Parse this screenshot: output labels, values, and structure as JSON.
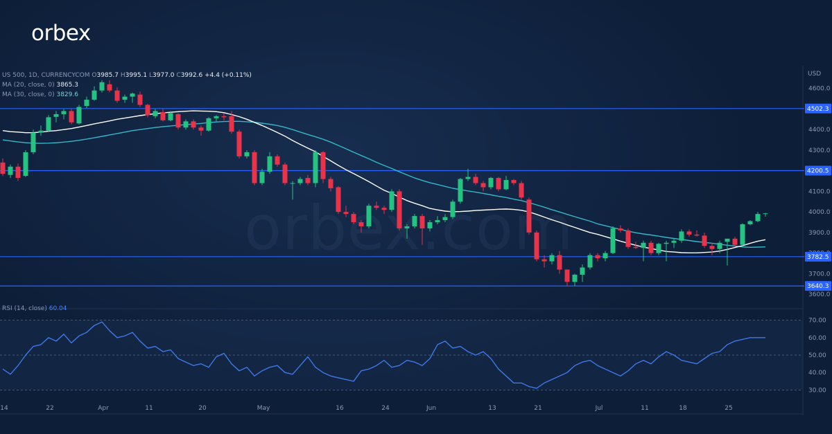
{
  "brand": {
    "logo": "orbex",
    "watermark": "orbex.com"
  },
  "colors": {
    "up": "#26c281",
    "down": "#e8334a",
    "level": "#2a63ff",
    "ma20": "#ffffff",
    "ma30": "#33b8c9",
    "rsi": "#3f78e8"
  },
  "chart_data": {
    "type": "candlestick",
    "symbol": "US 500, 1D, CURRENCYCOM",
    "ohlc_readout": {
      "o_label": "O",
      "o": "3985.7",
      "h_label": "H",
      "h": "3995.1",
      "l_label": "L",
      "l": "3977.0",
      "c_label": "C",
      "c": "3992.6",
      "change": "+4.4 (+0.11%)"
    },
    "ma20": {
      "label": "MA (20, close, 0)",
      "value": "3865.3"
    },
    "ma30": {
      "label": "MA (30, close, 0)",
      "value": "3829.6"
    },
    "rsi": {
      "label": "RSI (14, close)",
      "value": "60.04"
    },
    "currency": "USD",
    "price_ylim": [
      3560,
      4700
    ],
    "price_ticks": [
      "3600.0",
      "3700.0",
      "3800.0",
      "3900.0",
      "4000.0",
      "4100.0",
      "4200.0",
      "4300.0",
      "4400.0",
      "4500.0",
      "4600.0"
    ],
    "levels": [
      {
        "value": 4502.3,
        "label": "4502.3"
      },
      {
        "value": 4200.5,
        "label": "4200.5"
      },
      {
        "value": 3782.5,
        "label": "3782.5"
      },
      {
        "value": 3640.3,
        "label": "3640.3"
      }
    ],
    "rsi_ylim": [
      25,
      75
    ],
    "rsi_ticks": [
      "30.00",
      "40.00",
      "50.00",
      "60.00",
      "70.00"
    ],
    "rsi_levels": [
      30,
      50,
      70
    ],
    "x_ticks": [
      {
        "label": "14",
        "index": 0
      },
      {
        "label": "22",
        "index": 6
      },
      {
        "label": "Apr",
        "index": 13
      },
      {
        "label": "11",
        "index": 19
      },
      {
        "label": "20",
        "index": 26
      },
      {
        "label": "May",
        "index": 34
      },
      {
        "label": "16",
        "index": 44
      },
      {
        "label": "24",
        "index": 50
      },
      {
        "label": "Jun",
        "index": 56
      },
      {
        "label": "13",
        "index": 64
      },
      {
        "label": "21",
        "index": 70
      },
      {
        "label": "Jul",
        "index": 78
      },
      {
        "label": "11",
        "index": 84
      },
      {
        "label": "18",
        "index": 89
      },
      {
        "label": "25",
        "index": 95
      }
    ],
    "candles": [
      [
        4240,
        4260,
        4175,
        4185
      ],
      [
        4180,
        4230,
        4165,
        4220
      ],
      [
        4220,
        4235,
        4150,
        4165
      ],
      [
        4175,
        4300,
        4170,
        4290
      ],
      [
        4290,
        4400,
        4280,
        4385
      ],
      [
        4385,
        4420,
        4370,
        4395
      ],
      [
        4395,
        4470,
        4390,
        4460
      ],
      [
        4462,
        4490,
        4435,
        4475
      ],
      [
        4475,
        4500,
        4450,
        4490
      ],
      [
        4490,
        4500,
        4425,
        4435
      ],
      [
        4430,
        4520,
        4425,
        4510
      ],
      [
        4515,
        4560,
        4505,
        4545
      ],
      [
        4545,
        4610,
        4540,
        4590
      ],
      [
        4590,
        4640,
        4580,
        4630
      ],
      [
        4620,
        4640,
        4580,
        4590
      ],
      [
        4590,
        4605,
        4530,
        4540
      ],
      [
        4545,
        4570,
        4530,
        4560
      ],
      [
        4560,
        4580,
        4530,
        4575
      ],
      [
        4570,
        4585,
        4510,
        4520
      ],
      [
        4520,
        4525,
        4460,
        4470
      ],
      [
        4465,
        4500,
        4455,
        4490
      ],
      [
        4485,
        4500,
        4440,
        4445
      ],
      [
        4445,
        4490,
        4440,
        4480
      ],
      [
        4475,
        4480,
        4400,
        4410
      ],
      [
        4410,
        4450,
        4400,
        4440
      ],
      [
        4440,
        4450,
        4400,
        4410
      ],
      [
        4410,
        4420,
        4370,
        4395
      ],
      [
        4395,
        4460,
        4390,
        4455
      ],
      [
        4455,
        4470,
        4440,
        4465
      ],
      [
        4465,
        4480,
        4445,
        4460
      ],
      [
        4465,
        4490,
        4380,
        4390
      ],
      [
        4390,
        4400,
        4260,
        4270
      ],
      [
        4270,
        4300,
        4260,
        4290
      ],
      [
        4290,
        4300,
        4130,
        4140
      ],
      [
        4140,
        4210,
        4130,
        4195
      ],
      [
        4195,
        4290,
        4185,
        4270
      ],
      [
        4270,
        4280,
        4220,
        4230
      ],
      [
        4230,
        4240,
        4130,
        4140
      ],
      [
        4140,
        4150,
        4060,
        4140
      ],
      [
        4140,
        4170,
        4130,
        4160
      ],
      [
        4165,
        4180,
        4130,
        4140
      ],
      [
        4140,
        4300,
        4120,
        4290
      ],
      [
        4290,
        4295,
        4140,
        4160
      ],
      [
        4160,
        4170,
        4100,
        4115
      ],
      [
        4120,
        4125,
        3990,
        4000
      ],
      [
        4000,
        4030,
        3975,
        3990
      ],
      [
        3990,
        4000,
        3940,
        3950
      ],
      [
        3950,
        3960,
        3900,
        3930
      ],
      [
        3930,
        4040,
        3920,
        4030
      ],
      [
        4030,
        4050,
        4010,
        4020
      ],
      [
        4020,
        4030,
        3990,
        4010
      ],
      [
        4010,
        4110,
        4000,
        4100
      ],
      [
        4100,
        4110,
        3910,
        3920
      ],
      [
        3920,
        3940,
        3870,
        3930
      ],
      [
        3930,
        3990,
        3920,
        3980
      ],
      [
        3980,
        3990,
        3840,
        3920
      ],
      [
        3920,
        3960,
        3905,
        3950
      ],
      [
        3950,
        3980,
        3940,
        3960
      ],
      [
        3960,
        3990,
        3950,
        3975
      ],
      [
        3975,
        4060,
        3965,
        4050
      ],
      [
        4050,
        4165,
        4040,
        4160
      ],
      [
        4160,
        4210,
        4150,
        4170
      ],
      [
        4170,
        4185,
        4130,
        4140
      ],
      [
        4140,
        4150,
        4100,
        4120
      ],
      [
        4120,
        4170,
        4110,
        4165
      ],
      [
        4165,
        4170,
        4100,
        4110
      ],
      [
        4110,
        4175,
        4105,
        4155
      ],
      [
        4155,
        4160,
        4130,
        4140
      ],
      [
        4140,
        4150,
        4060,
        4070
      ],
      [
        4060,
        4070,
        3890,
        3900
      ],
      [
        3900,
        3910,
        3760,
        3770
      ],
      [
        3770,
        3790,
        3730,
        3760
      ],
      [
        3760,
        3800,
        3745,
        3790
      ],
      [
        3790,
        3810,
        3700,
        3720
      ],
      [
        3720,
        3720,
        3640,
        3660
      ],
      [
        3660,
        3700,
        3640,
        3695
      ],
      [
        3695,
        3745,
        3660,
        3730
      ],
      [
        3730,
        3800,
        3720,
        3790
      ],
      [
        3790,
        3800,
        3760,
        3775
      ],
      [
        3775,
        3810,
        3760,
        3800
      ],
      [
        3800,
        3930,
        3795,
        3920
      ],
      [
        3920,
        3935,
        3900,
        3910
      ],
      [
        3910,
        3920,
        3820,
        3830
      ],
      [
        3830,
        3855,
        3820,
        3825
      ],
      [
        3825,
        3860,
        3760,
        3850
      ],
      [
        3850,
        3860,
        3790,
        3800
      ],
      [
        3800,
        3850,
        3790,
        3845
      ],
      [
        3845,
        3860,
        3760,
        3850
      ],
      [
        3850,
        3870,
        3825,
        3860
      ],
      [
        3860,
        3915,
        3850,
        3905
      ],
      [
        3905,
        3915,
        3880,
        3890
      ],
      [
        3890,
        3910,
        3880,
        3885
      ],
      [
        3885,
        3900,
        3825,
        3835
      ],
      [
        3835,
        3850,
        3790,
        3820
      ],
      [
        3820,
        3860,
        3800,
        3850
      ],
      [
        3855,
        3870,
        3740,
        3870
      ],
      [
        3870,
        3880,
        3830,
        3840
      ],
      [
        3840,
        3945,
        3835,
        3940
      ],
      [
        3940,
        3960,
        3935,
        3955
      ],
      [
        3955,
        4000,
        3950,
        3990
      ],
      [
        3990,
        3995,
        3977,
        3993
      ]
    ],
    "ma20_series": [
      4395,
      4390,
      4388,
      4385,
      4385,
      4388,
      4392,
      4395,
      4400,
      4405,
      4412,
      4420,
      4428,
      4435,
      4442,
      4450,
      4456,
      4462,
      4468,
      4473,
      4477,
      4481,
      4484,
      4487,
      4489,
      4491,
      4490,
      4489,
      4487,
      4482,
      4473,
      4463,
      4450,
      4435,
      4420,
      4403,
      4386,
      4368,
      4347,
      4328,
      4310,
      4292,
      4270,
      4248,
      4226,
      4205,
      4186,
      4167,
      4147,
      4126,
      4105,
      4090,
      4072,
      4055,
      4042,
      4030,
      4017,
      4010,
      4004,
      4001,
      4002,
      4004,
      4007,
      4009,
      4011,
      4013,
      4014,
      4012,
      4008,
      4000,
      3988,
      3975,
      3962,
      3950,
      3937,
      3925,
      3912,
      3900,
      3891,
      3880,
      3869,
      3858,
      3848,
      3838,
      3829,
      3822,
      3815,
      3808,
      3805,
      3802,
      3801,
      3801,
      3803,
      3805,
      3810,
      3818,
      3827,
      3836,
      3848,
      3858,
      3865
    ],
    "ma30_series": [
      4350,
      4345,
      4340,
      4336,
      4334,
      4333,
      4334,
      4336,
      4339,
      4343,
      4348,
      4354,
      4360,
      4367,
      4374,
      4381,
      4388,
      4395,
      4400,
      4405,
      4410,
      4414,
      4418,
      4421,
      4424,
      4427,
      4430,
      4434,
      4437,
      4439,
      4440,
      4440,
      4438,
      4436,
      4431,
      4426,
      4420,
      4411,
      4400,
      4388,
      4376,
      4365,
      4353,
      4339,
      4323,
      4307,
      4290,
      4274,
      4258,
      4241,
      4226,
      4211,
      4195,
      4180,
      4165,
      4153,
      4142,
      4133,
      4124,
      4115,
      4108,
      4102,
      4096,
      4090,
      4083,
      4076,
      4070,
      4062,
      4055,
      4045,
      4034,
      4023,
      4011,
      4000,
      3988,
      3977,
      3966,
      3955,
      3942,
      3933,
      3924,
      3915,
      3906,
      3899,
      3893,
      3888,
      3882,
      3876,
      3871,
      3866,
      3861,
      3856,
      3852,
      3848,
      3843,
      3838,
      3834,
      3830,
      3828,
      3829,
      3830
    ],
    "rsi_series": [
      42,
      39,
      44,
      50,
      55,
      56,
      60,
      58,
      62,
      57,
      61,
      63,
      67,
      69,
      64,
      60,
      61,
      63,
      58,
      54,
      55,
      52,
      53,
      48,
      46,
      44,
      45,
      43,
      49,
      51,
      45,
      41,
      43,
      38,
      41,
      43,
      44,
      40,
      39,
      44,
      49,
      43,
      40,
      38,
      37,
      36,
      35,
      41,
      42,
      44,
      47,
      43,
      44,
      47,
      46,
      44,
      48,
      56,
      58,
      54,
      55,
      52,
      50,
      52,
      48,
      42,
      38,
      34,
      34,
      32,
      31,
      34,
      36,
      38,
      40,
      44,
      46,
      47,
      44,
      42,
      40,
      38,
      41,
      45,
      47,
      45,
      49,
      52,
      50,
      47,
      46,
      45,
      48,
      51,
      52,
      56,
      58,
      59,
      60,
      60,
      60
    ]
  }
}
